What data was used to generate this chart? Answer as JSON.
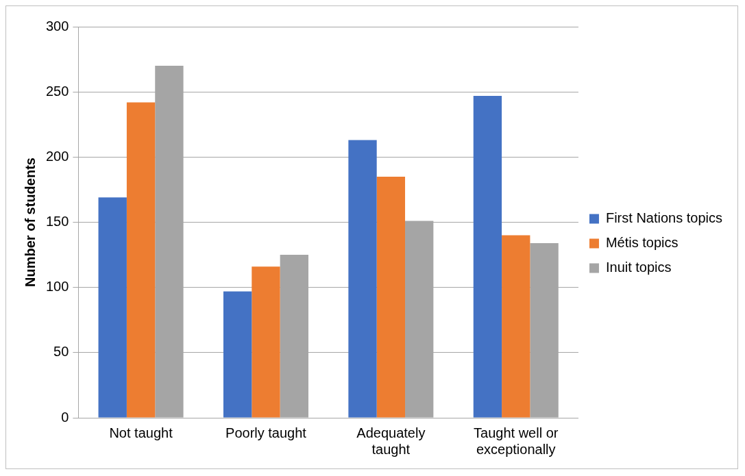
{
  "chart_data": {
    "type": "bar",
    "ylabel": "Number of students",
    "categories": [
      "Not taught",
      "Poorly taught",
      "Adequately taught",
      "Taught well or exceptionally"
    ],
    "series": [
      {
        "name": "First Nations topics",
        "color": "#4472c4",
        "values": [
          169,
          97,
          213,
          247
        ]
      },
      {
        "name": "Métis topics",
        "color": "#ed7d31",
        "values": [
          242,
          116,
          185,
          140
        ]
      },
      {
        "name": "Inuit topics",
        "color": "#a5a5a5",
        "values": [
          270,
          125,
          151,
          134
        ]
      }
    ],
    "ylim": [
      0,
      300
    ],
    "yticks": [
      0,
      50,
      100,
      150,
      200,
      250,
      300
    ],
    "grid": "y",
    "legend": "right"
  }
}
